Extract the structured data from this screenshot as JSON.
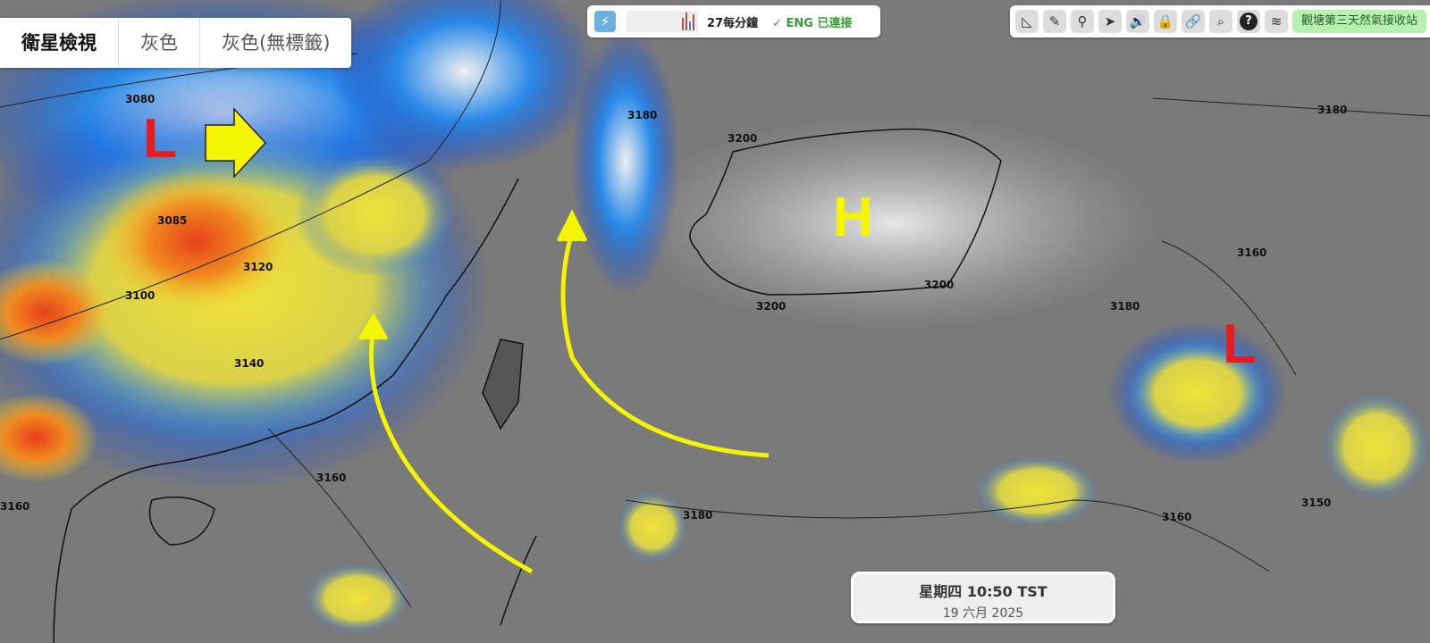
{
  "tabs": [
    {
      "label": "衛星檢視",
      "active": true
    },
    {
      "label": "灰色",
      "active": false
    },
    {
      "label": "灰色(無標籤)",
      "active": false
    }
  ],
  "status": {
    "icon": "lightning-icon",
    "rate": "27每分鐘",
    "connection": "ENG 已連接"
  },
  "toolbar": {
    "tools": [
      "ruler-icon",
      "pencil-icon",
      "map-pin-icon",
      "navigation-arrow-icon",
      "speaker-icon",
      "lock-icon",
      "link-icon",
      "search-icon",
      "help-icon",
      "layers-icon"
    ],
    "station": "觀塘第三天然氣接收站"
  },
  "time": {
    "line1": "星期四 10:50 TST",
    "line2": "19 六月 2025"
  },
  "annotations": {
    "low_west": "L",
    "high": "H",
    "low_east": "L"
  },
  "contours": [
    "3080",
    "3100",
    "3120",
    "3140",
    "3160",
    "3180",
    "3200",
    "3085",
    "3180",
    "3200",
    "3200",
    "3160",
    "3180",
    "3160",
    "3180",
    "3150",
    "3160"
  ],
  "colors": {
    "annotation_red": "#e81c1c",
    "annotation_yellow": "#f5f500",
    "connected_green": "#3a9a3a",
    "station_bg": "#b8f0b0"
  }
}
